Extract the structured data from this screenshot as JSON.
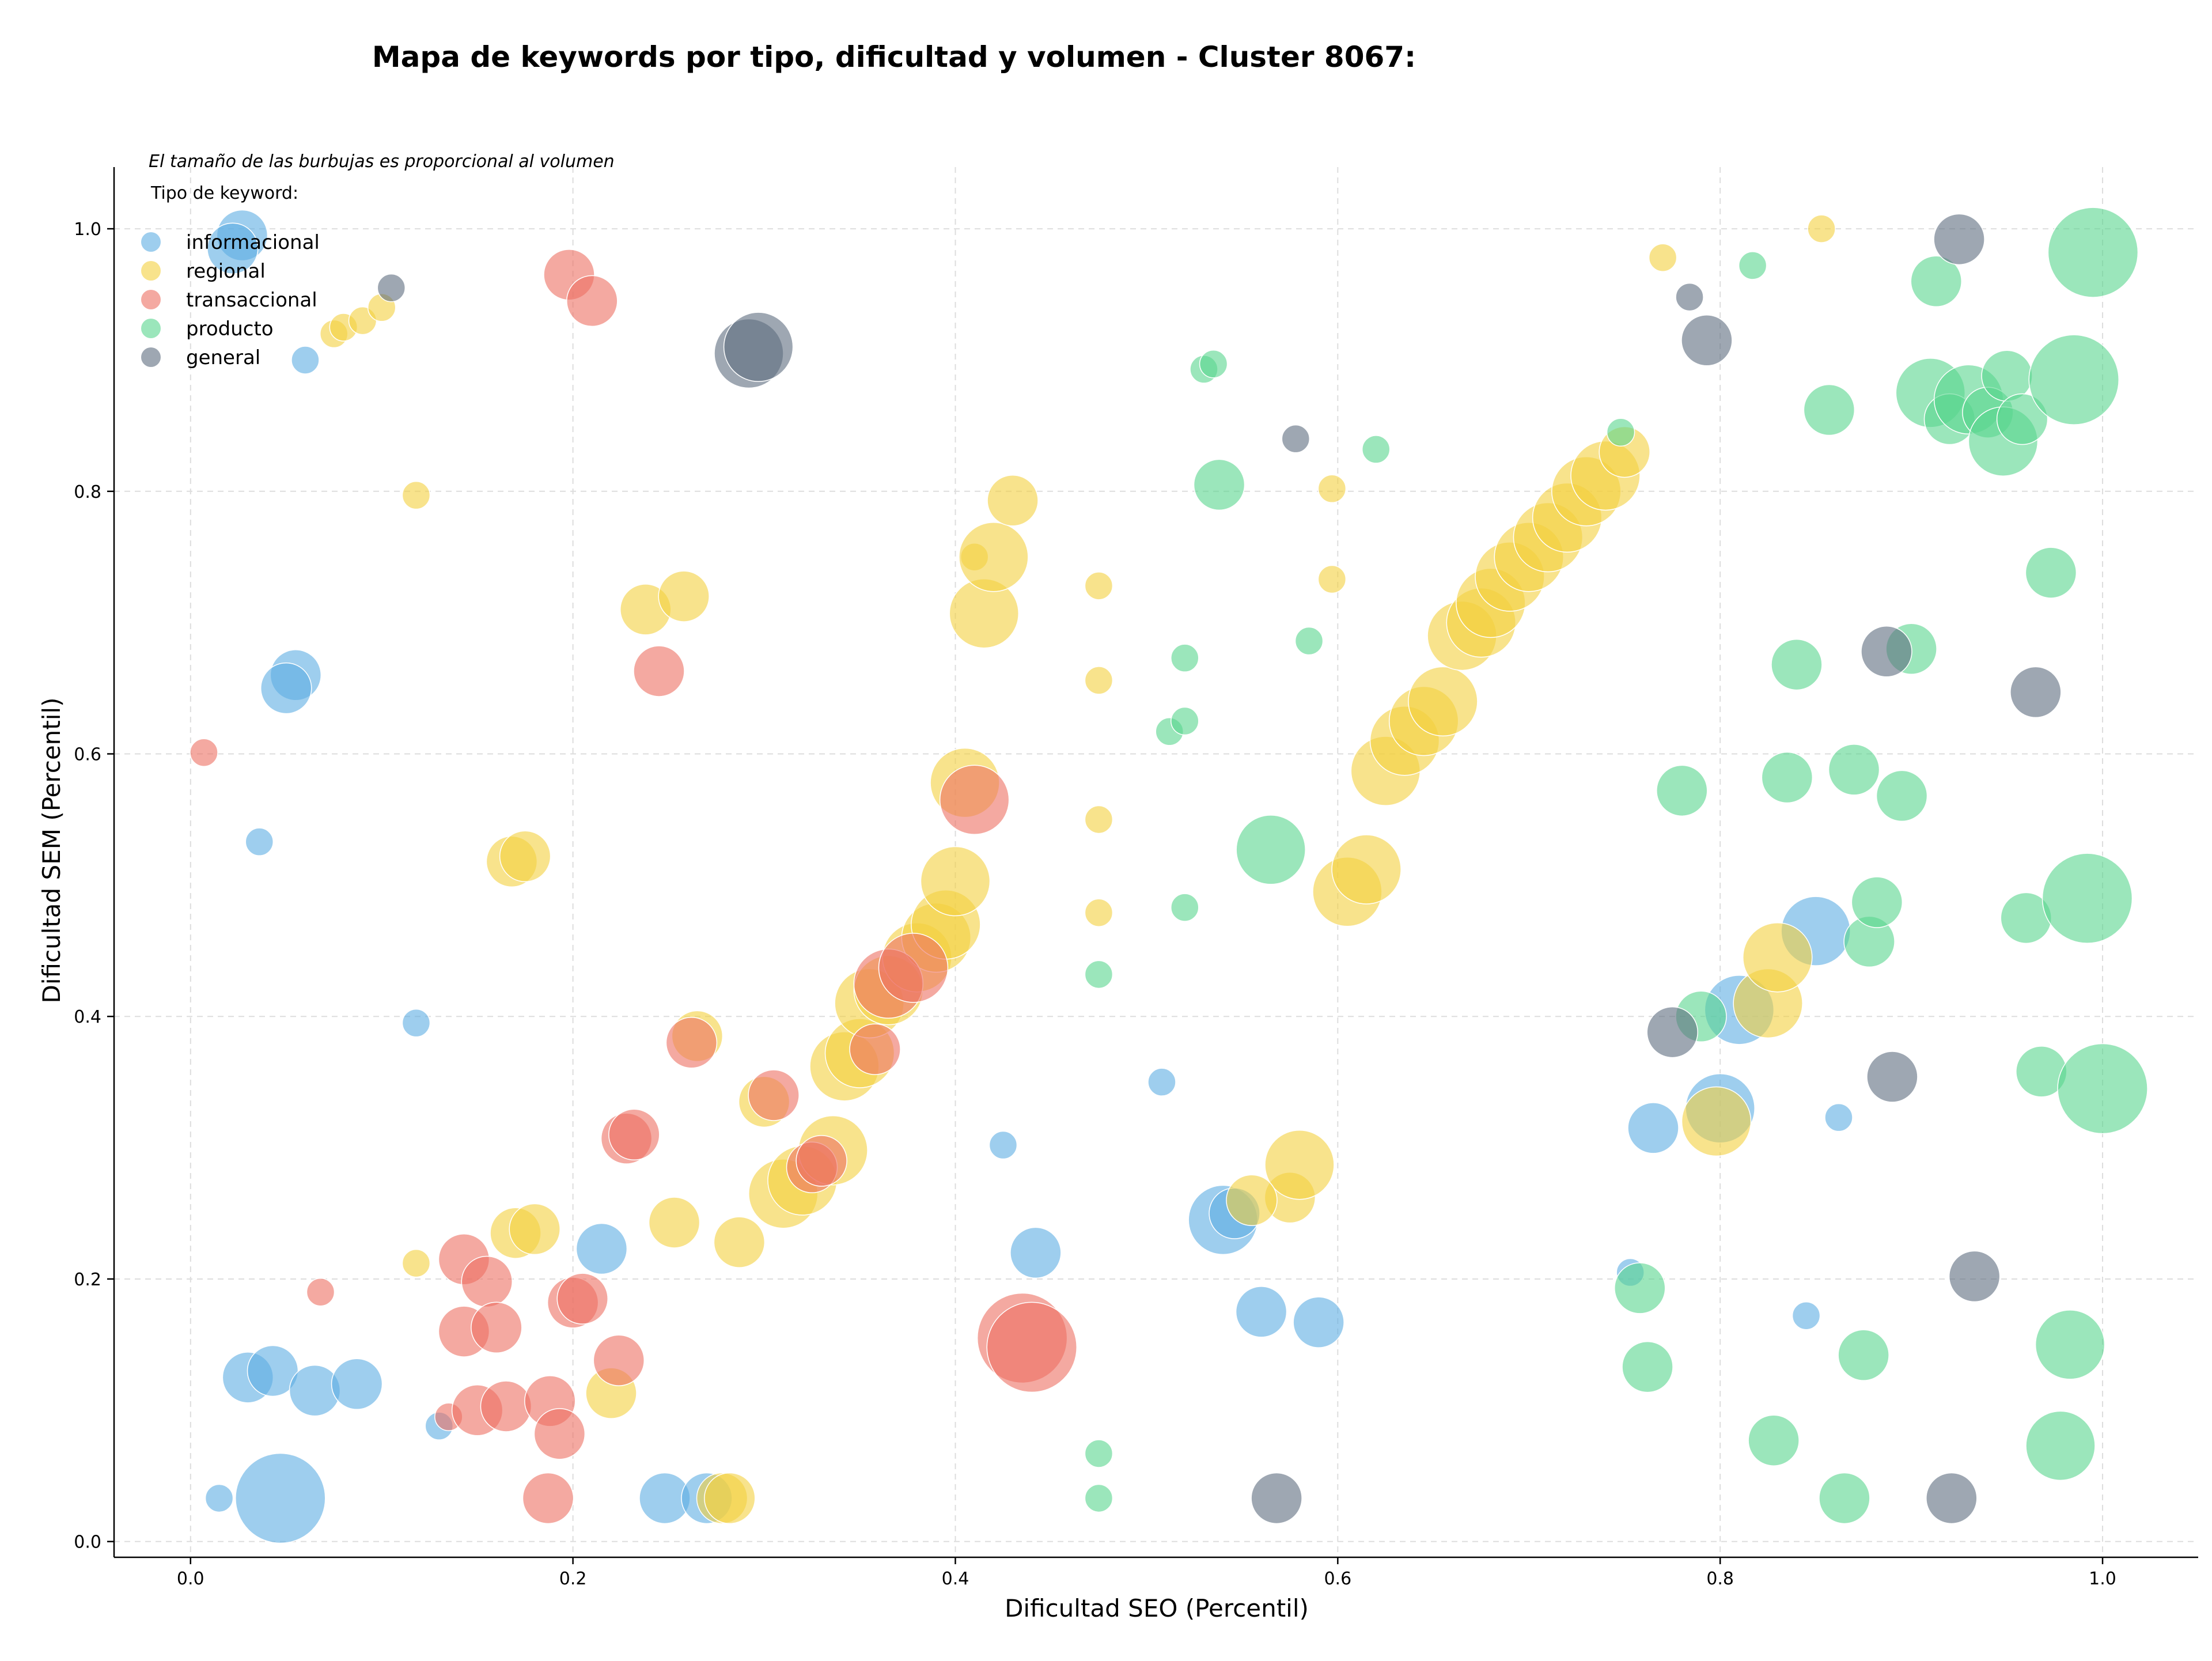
{
  "chart_data": {
    "type": "scatter",
    "title": "Mapa de keywords por tipo, dificultad y volumen - Cluster 8067:",
    "xlabel": "Dificultad SEO (Percentil)",
    "ylabel": "Dificultad SEM (Percentil)",
    "xlim": [
      -0.04,
      1.05
    ],
    "ylim": [
      -0.012,
      1.047
    ],
    "xticks": [
      "0.0",
      "0.2",
      "0.4",
      "0.6",
      "0.8",
      "1.0"
    ],
    "yticks": [
      "0.0",
      "0.2",
      "0.4",
      "0.6",
      "0.8",
      "1.0"
    ],
    "grid": true,
    "note": "El tamaño de las burbujas es proporcional al volumen",
    "legend_title": "Tipo de keyword:",
    "legend_position": "top-left",
    "series": [
      {
        "name": "informacional",
        "color": "#5dade2",
        "points": [
          [
            0.027,
            0.995,
            2
          ],
          [
            0.022,
            0.985,
            2
          ],
          [
            0.06,
            0.9,
            1
          ],
          [
            0.055,
            0.66,
            2
          ],
          [
            0.05,
            0.65,
            2
          ],
          [
            0.036,
            0.533,
            1
          ],
          [
            0.118,
            0.395,
            1
          ],
          [
            0.215,
            0.223,
            2
          ],
          [
            0.03,
            0.125,
            2
          ],
          [
            0.043,
            0.13,
            2
          ],
          [
            0.065,
            0.115,
            2
          ],
          [
            0.087,
            0.12,
            2
          ],
          [
            0.13,
            0.088,
            1
          ],
          [
            0.015,
            0.033,
            1
          ],
          [
            0.047,
            0.033,
            4
          ],
          [
            0.248,
            0.033,
            2
          ],
          [
            0.27,
            0.033,
            2
          ],
          [
            0.425,
            0.302,
            1
          ],
          [
            0.442,
            0.22,
            2
          ],
          [
            0.508,
            0.35,
            1
          ],
          [
            0.54,
            0.245,
            3
          ],
          [
            0.546,
            0.25,
            2
          ],
          [
            0.56,
            0.175,
            2
          ],
          [
            0.59,
            0.167,
            2
          ],
          [
            0.765,
            0.315,
            2
          ],
          [
            0.753,
            0.205,
            1
          ],
          [
            0.8,
            0.33,
            3
          ],
          [
            0.81,
            0.405,
            3
          ],
          [
            0.85,
            0.465,
            3
          ],
          [
            0.862,
            0.323,
            1
          ],
          [
            0.845,
            0.172,
            1
          ]
        ]
      },
      {
        "name": "regional",
        "color": "#f4d03f",
        "points": [
          [
            0.075,
            0.92,
            1
          ],
          [
            0.08,
            0.925,
            1
          ],
          [
            0.09,
            0.93,
            1
          ],
          [
            0.1,
            0.94,
            1
          ],
          [
            0.118,
            0.797,
            1
          ],
          [
            0.168,
            0.518,
            2
          ],
          [
            0.175,
            0.522,
            2
          ],
          [
            0.17,
            0.235,
            2
          ],
          [
            0.18,
            0.238,
            2
          ],
          [
            0.118,
            0.212,
            1
          ],
          [
            0.22,
            0.113,
            2
          ],
          [
            0.238,
            0.71,
            2
          ],
          [
            0.258,
            0.72,
            2
          ],
          [
            0.253,
            0.243,
            2
          ],
          [
            0.265,
            0.385,
            2
          ],
          [
            0.287,
            0.228,
            2
          ],
          [
            0.278,
            0.033,
            2
          ],
          [
            0.282,
            0.033,
            2
          ],
          [
            0.3,
            0.335,
            2
          ],
          [
            0.31,
            0.265,
            3
          ],
          [
            0.32,
            0.275,
            3
          ],
          [
            0.336,
            0.298,
            3
          ],
          [
            0.342,
            0.362,
            3
          ],
          [
            0.35,
            0.372,
            3
          ],
          [
            0.355,
            0.41,
            3
          ],
          [
            0.365,
            0.42,
            3
          ],
          [
            0.38,
            0.445,
            3
          ],
          [
            0.39,
            0.46,
            3
          ],
          [
            0.395,
            0.47,
            3
          ],
          [
            0.4,
            0.503,
            3
          ],
          [
            0.405,
            0.578,
            3
          ],
          [
            0.41,
            0.75,
            1
          ],
          [
            0.415,
            0.707,
            3
          ],
          [
            0.42,
            0.75,
            3
          ],
          [
            0.43,
            0.793,
            2
          ],
          [
            0.475,
            0.728,
            1
          ],
          [
            0.475,
            0.656,
            1
          ],
          [
            0.475,
            0.55,
            1
          ],
          [
            0.475,
            0.479,
            1
          ],
          [
            0.575,
            0.262,
            2
          ],
          [
            0.58,
            0.287,
            3
          ],
          [
            0.555,
            0.26,
            2
          ],
          [
            0.597,
            0.733,
            1
          ],
          [
            0.597,
            0.802,
            1
          ],
          [
            0.605,
            0.495,
            3
          ],
          [
            0.615,
            0.512,
            3
          ],
          [
            0.625,
            0.587,
            3
          ],
          [
            0.635,
            0.61,
            3
          ],
          [
            0.645,
            0.625,
            3
          ],
          [
            0.655,
            0.64,
            3
          ],
          [
            0.665,
            0.69,
            3
          ],
          [
            0.675,
            0.7,
            3
          ],
          [
            0.68,
            0.715,
            3
          ],
          [
            0.69,
            0.735,
            3
          ],
          [
            0.7,
            0.75,
            3
          ],
          [
            0.71,
            0.765,
            3
          ],
          [
            0.72,
            0.78,
            3
          ],
          [
            0.73,
            0.8,
            3
          ],
          [
            0.74,
            0.812,
            3
          ],
          [
            0.75,
            0.83,
            2
          ],
          [
            0.77,
            0.978,
            1
          ],
          [
            0.853,
            1.0,
            1
          ],
          [
            0.798,
            0.32,
            3
          ],
          [
            0.825,
            0.41,
            3
          ],
          [
            0.83,
            0.445,
            3
          ]
        ]
      },
      {
        "name": "transaccional",
        "color": "#ec7063",
        "points": [
          [
            0.007,
            0.601,
            1
          ],
          [
            0.198,
            0.965,
            2
          ],
          [
            0.21,
            0.945,
            2
          ],
          [
            0.245,
            0.663,
            2
          ],
          [
            0.068,
            0.19,
            1
          ],
          [
            0.143,
            0.215,
            2
          ],
          [
            0.155,
            0.198,
            2
          ],
          [
            0.143,
            0.16,
            2
          ],
          [
            0.16,
            0.163,
            2
          ],
          [
            0.135,
            0.095,
            1
          ],
          [
            0.15,
            0.1,
            2
          ],
          [
            0.165,
            0.103,
            2
          ],
          [
            0.188,
            0.107,
            2
          ],
          [
            0.193,
            0.082,
            2
          ],
          [
            0.187,
            0.033,
            2
          ],
          [
            0.2,
            0.182,
            2
          ],
          [
            0.205,
            0.185,
            2
          ],
          [
            0.228,
            0.307,
            2
          ],
          [
            0.232,
            0.31,
            2
          ],
          [
            0.224,
            0.138,
            2
          ],
          [
            0.262,
            0.38,
            2
          ],
          [
            0.305,
            0.34,
            2
          ],
          [
            0.325,
            0.285,
            2
          ],
          [
            0.33,
            0.29,
            2
          ],
          [
            0.358,
            0.375,
            2
          ],
          [
            0.365,
            0.425,
            3
          ],
          [
            0.378,
            0.437,
            3
          ],
          [
            0.41,
            0.565,
            3
          ],
          [
            0.435,
            0.155,
            4
          ],
          [
            0.44,
            0.148,
            4
          ]
        ]
      },
      {
        "name": "producto",
        "color": "#58d68d",
        "points": [
          [
            0.53,
            0.893,
            1
          ],
          [
            0.535,
            0.897,
            1
          ],
          [
            0.538,
            0.805,
            2
          ],
          [
            0.62,
            0.832,
            1
          ],
          [
            0.52,
            0.673,
            1
          ],
          [
            0.512,
            0.617,
            1
          ],
          [
            0.52,
            0.625,
            1
          ],
          [
            0.585,
            0.686,
            1
          ],
          [
            0.565,
            0.527,
            3
          ],
          [
            0.52,
            0.483,
            1
          ],
          [
            0.475,
            0.432,
            1
          ],
          [
            0.475,
            0.067,
            1
          ],
          [
            0.475,
            0.033,
            1
          ],
          [
            0.748,
            0.845,
            1
          ],
          [
            0.817,
            0.972,
            1
          ],
          [
            0.78,
            0.572,
            2
          ],
          [
            0.79,
            0.4,
            2
          ],
          [
            0.758,
            0.193,
            2
          ],
          [
            0.762,
            0.133,
            2
          ],
          [
            0.828,
            0.077,
            2
          ],
          [
            0.865,
            0.033,
            2
          ],
          [
            0.875,
            0.142,
            2
          ],
          [
            0.835,
            0.582,
            2
          ],
          [
            0.84,
            0.668,
            2
          ],
          [
            0.857,
            0.862,
            2
          ],
          [
            0.87,
            0.588,
            2
          ],
          [
            0.878,
            0.457,
            2
          ],
          [
            0.882,
            0.487,
            2
          ],
          [
            0.895,
            0.568,
            2
          ],
          [
            0.9,
            0.68,
            2
          ],
          [
            0.913,
            0.96,
            2
          ],
          [
            0.91,
            0.875,
            3
          ],
          [
            0.92,
            0.855,
            2
          ],
          [
            0.93,
            0.87,
            3
          ],
          [
            0.94,
            0.86,
            2
          ],
          [
            0.948,
            0.838,
            3
          ],
          [
            0.95,
            0.888,
            2
          ],
          [
            0.958,
            0.855,
            2
          ],
          [
            0.96,
            0.475,
            2
          ],
          [
            0.968,
            0.358,
            2
          ],
          [
            0.973,
            0.738,
            2
          ],
          [
            0.978,
            0.073,
            3
          ],
          [
            0.983,
            0.15,
            3
          ],
          [
            0.985,
            0.885,
            4
          ],
          [
            0.992,
            0.49,
            4
          ],
          [
            0.995,
            0.982,
            4
          ],
          [
            1.0,
            0.345,
            4
          ]
        ]
      },
      {
        "name": "general",
        "color": "#5d6d7e",
        "points": [
          [
            0.105,
            0.955,
            1
          ],
          [
            0.292,
            0.905,
            3
          ],
          [
            0.297,
            0.91,
            3
          ],
          [
            0.578,
            0.84,
            1
          ],
          [
            0.568,
            0.033,
            2
          ],
          [
            0.775,
            0.388,
            2
          ],
          [
            0.784,
            0.948,
            1
          ],
          [
            0.793,
            0.915,
            2
          ],
          [
            0.887,
            0.678,
            2
          ],
          [
            0.89,
            0.354,
            2
          ],
          [
            0.925,
            0.992,
            2
          ],
          [
            0.921,
            0.033,
            2
          ],
          [
            0.933,
            0.202,
            2
          ],
          [
            0.965,
            0.647,
            2
          ]
        ]
      }
    ]
  }
}
